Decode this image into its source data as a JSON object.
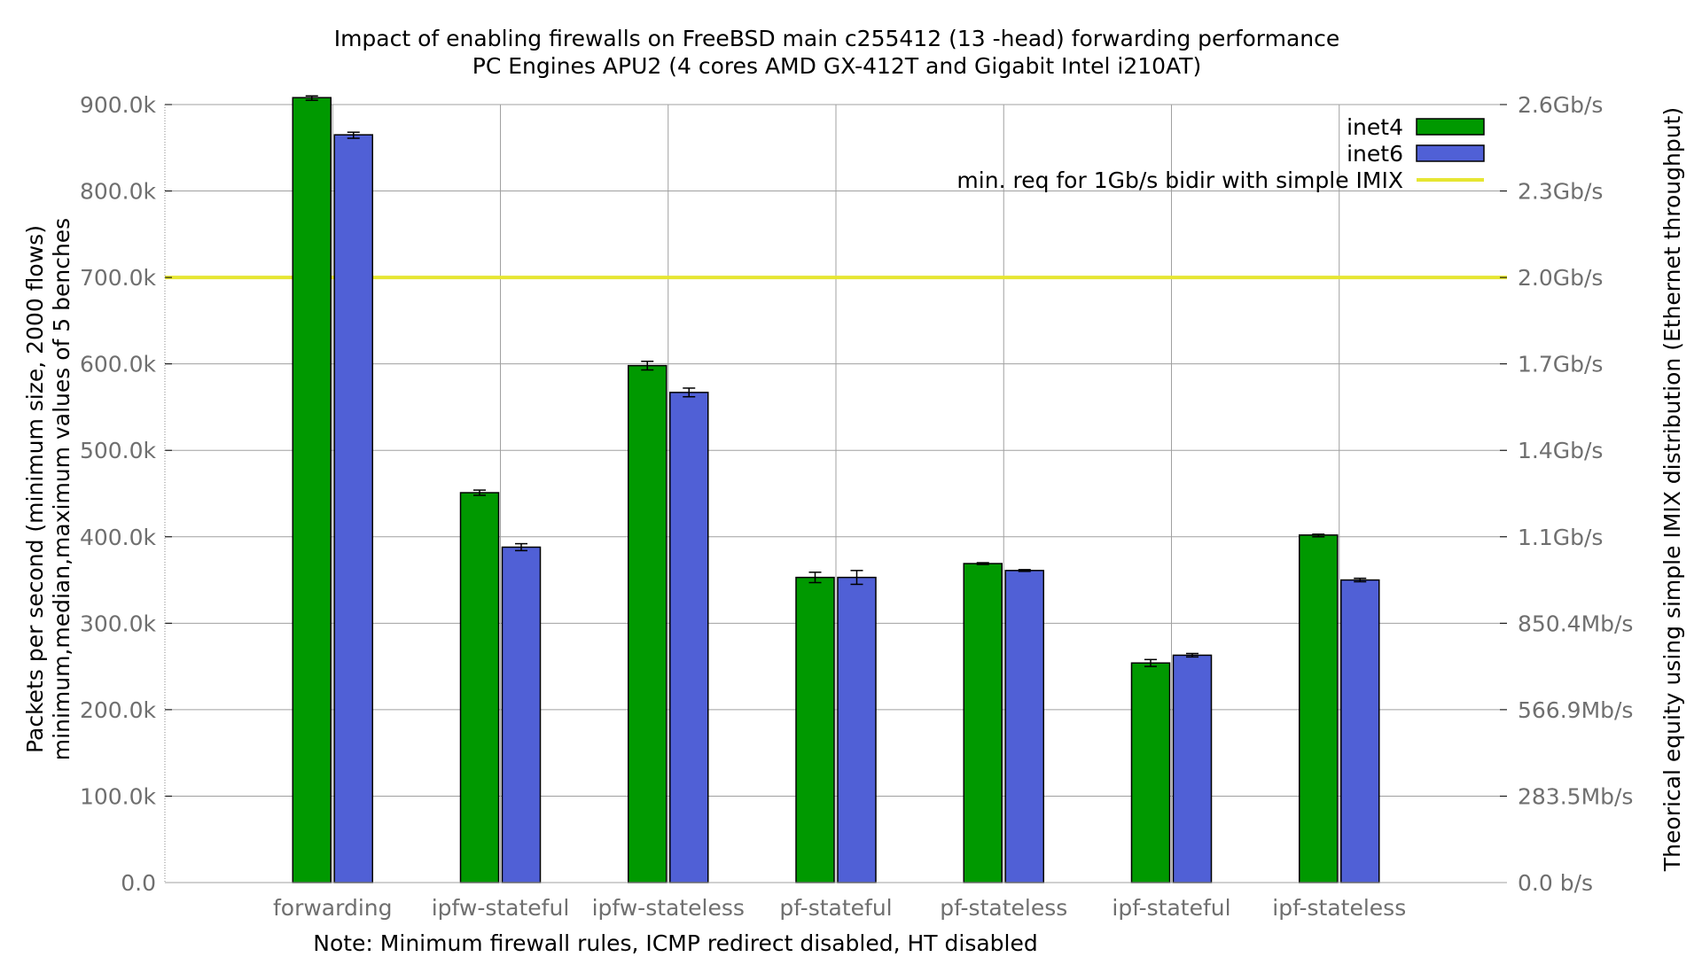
{
  "chart_data": {
    "type": "bar",
    "title": "Impact of enabling firewalls on FreeBSD main c255412 (13 -head) forwarding performance",
    "subtitle": "PC Engines APU2 (4 cores AMD GX-412T and Gigabit Intel i210AT)",
    "xlabel": "Note: Minimum firewall rules, ICMP redirect disabled, HT disabled",
    "ylabel": "Packets per second (minimum size, 2000 flows)",
    "ylabel2": "minimum,median,maximum values of 5 benches",
    "y2label": "Theorical equity using simple IMIX distribution (Ethernet throughput)",
    "ylim": [
      0,
      900000
    ],
    "yticks": [
      "0.0",
      "100.0k",
      "200.0k",
      "300.0k",
      "400.0k",
      "500.0k",
      "600.0k",
      "700.0k",
      "800.0k",
      "900.0k"
    ],
    "y2ticks": [
      "0.0 b/s",
      "283.5Mb/s",
      "566.9Mb/s",
      "850.4Mb/s",
      "1.1Gb/s",
      "1.4Gb/s",
      "1.7Gb/s",
      "2.0Gb/s",
      "2.3Gb/s",
      "2.6Gb/s"
    ],
    "categories": [
      "forwarding",
      "ipfw-stateful",
      "ipfw-stateless",
      "pf-stateful",
      "pf-stateless",
      "ipf-stateful",
      "ipf-stateless"
    ],
    "series": [
      {
        "name": "inet4",
        "color": "#009900",
        "values": [
          908000,
          451000,
          598000,
          353000,
          369000,
          254000,
          402000
        ],
        "min": [
          905000,
          448000,
          593000,
          347000,
          368000,
          250000,
          400000
        ],
        "max": [
          910000,
          454000,
          603000,
          359000,
          370000,
          258000,
          403000
        ]
      },
      {
        "name": "inet6",
        "color": "#5060d6",
        "values": [
          865000,
          388000,
          567000,
          353000,
          361000,
          263000,
          350000
        ],
        "min": [
          861000,
          384000,
          562000,
          345000,
          360000,
          261000,
          348000
        ],
        "max": [
          868000,
          392000,
          572000,
          361000,
          362000,
          265000,
          352000
        ]
      }
    ],
    "reference_line": {
      "name": "min. req for 1Gb/s bidir with simple IMIX",
      "value": 700000,
      "color": "#e6e632"
    },
    "grid": true,
    "legend_position": "top-right"
  }
}
